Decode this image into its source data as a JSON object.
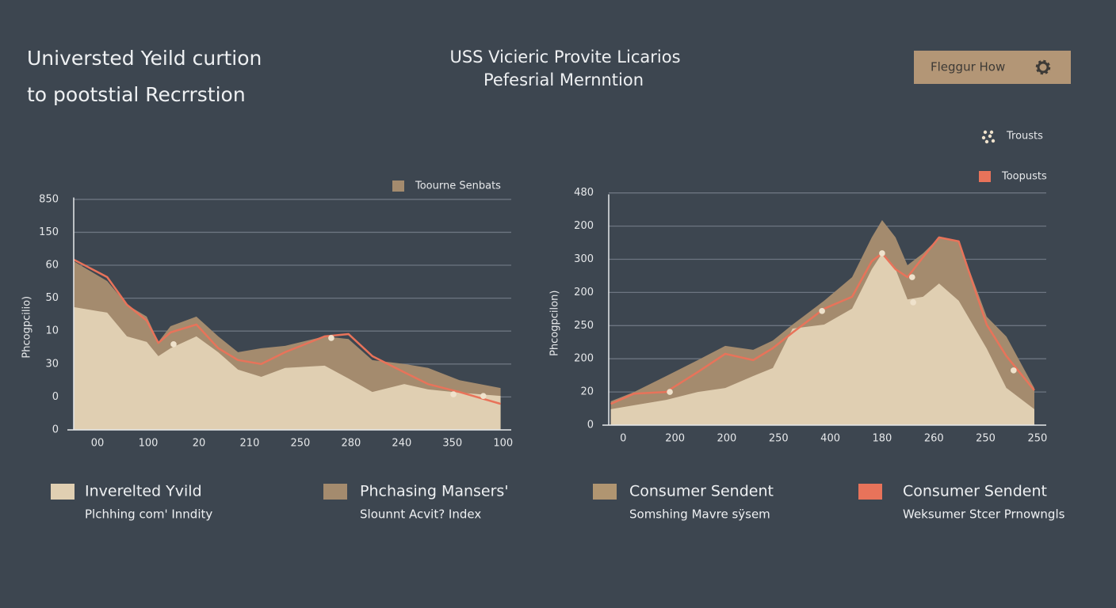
{
  "header": {
    "title_lines": [
      "Universted Yeild curtion",
      "to pootstial Recrrstion"
    ],
    "center_lines": [
      "USS Vicieric Provite Licarios",
      "Pefesrial Mernntion"
    ],
    "button": "Fleggur How"
  },
  "chart_data": [
    {
      "type": "area",
      "y_label": "Phcogpcilio)",
      "legend_corner": "upper right",
      "xlim": [
        -0.47,
        8.16
      ],
      "ylim": [
        0,
        7.2
      ],
      "xticks": [
        {
          "value": 0,
          "label": "00"
        },
        {
          "value": 1,
          "label": "100"
        },
        {
          "value": 2,
          "label": "20"
        },
        {
          "value": 3,
          "label": "210"
        },
        {
          "value": 4,
          "label": "250"
        },
        {
          "value": 5,
          "label": "280"
        },
        {
          "value": 6,
          "label": "240"
        },
        {
          "value": 7,
          "label": "350"
        },
        {
          "value": 8,
          "label": "100"
        }
      ],
      "yticks": [
        0,
        {
          "value": 1,
          "label": "0"
        },
        {
          "value": 2,
          "label": "30"
        },
        {
          "value": 3,
          "label": "10"
        },
        {
          "value": 4,
          "label": "50"
        },
        {
          "value": 5,
          "label": "60"
        },
        {
          "value": 6,
          "label": "150"
        },
        {
          "value": 7,
          "label": "850"
        }
      ],
      "grid": true,
      "x": [
        -0.47,
        0.19,
        0.58,
        0.97,
        1.2,
        1.44,
        1.95,
        2.38,
        2.77,
        3.23,
        3.7,
        4.48,
        4.95,
        5.42,
        6.05,
        6.52,
        7.14,
        7.95
      ],
      "series": [
        {
          "name": "Toourne Senbats",
          "kind": "fill",
          "color": "#a48b6e",
          "values": [
            5.12,
            4.52,
            3.8,
            3.44,
            2.67,
            3.15,
            3.44,
            2.84,
            2.36,
            2.48,
            2.55,
            2.84,
            2.76,
            2.12,
            2.0,
            1.88,
            1.51,
            1.27
          ]
        },
        {
          "kind": "fill",
          "color": "#e0cfb2",
          "values": [
            3.73,
            3.56,
            2.84,
            2.67,
            2.24,
            2.48,
            2.84,
            2.36,
            1.83,
            1.61,
            1.88,
            1.95,
            1.56,
            1.15,
            1.39,
            1.23,
            1.13,
            1.03
          ]
        },
        {
          "kind": "line",
          "color": "#e8735a",
          "values": [
            5.17,
            4.64,
            3.8,
            3.32,
            2.64,
            2.96,
            3.2,
            2.48,
            2.12,
            2.0,
            2.36,
            2.84,
            2.91,
            2.24,
            1.75,
            1.39,
            1.15,
            0.79
          ]
        },
        {
          "kind": "points",
          "color": "#efe2cc",
          "x": [
            1.5,
            4.61,
            7.02,
            7.61
          ],
          "values": [
            2.6,
            2.79,
            1.08,
            1.03
          ]
        }
      ]
    },
    {
      "type": "area",
      "y_label": "Phcogpcilon)",
      "legend_corner": "upper right",
      "xlim": [
        -0.28,
        8.17
      ],
      "ylim": [
        0,
        7.1
      ],
      "xticks": [
        0,
        {
          "value": 1,
          "label": "200"
        },
        {
          "value": 2,
          "label": "200"
        },
        {
          "value": 3,
          "label": "250"
        },
        {
          "value": 4,
          "label": "400"
        },
        {
          "value": 5,
          "label": "180"
        },
        {
          "value": 6,
          "label": "260"
        },
        {
          "value": 7,
          "label": "250"
        },
        {
          "value": 8,
          "label": "250"
        }
      ],
      "yticks": [
        0,
        {
          "value": 1,
          "label": "20"
        },
        {
          "value": 2,
          "label": "200"
        },
        {
          "value": 3,
          "label": "250"
        },
        {
          "value": 4,
          "label": "200"
        },
        {
          "value": 5,
          "label": "300"
        },
        {
          "value": 6,
          "label": "200"
        },
        {
          "value": 7,
          "label": "480"
        }
      ],
      "grid": true,
      "x": [
        -0.24,
        0.21,
        0.83,
        1.44,
        1.97,
        2.51,
        2.89,
        3.27,
        3.88,
        4.42,
        4.8,
        5.0,
        5.26,
        5.49,
        5.79,
        6.1,
        6.48,
        7.02,
        7.4,
        7.94
      ],
      "series": [
        {
          "kind": "fill",
          "color": "#a48b6e",
          "values": [
            0.72,
            1.0,
            1.48,
            1.96,
            2.39,
            2.27,
            2.55,
            3.03,
            3.75,
            4.46,
            5.66,
            6.18,
            5.66,
            4.82,
            5.18,
            5.66,
            5.54,
            3.27,
            2.67,
            1.12
          ]
        },
        {
          "kind": "fill",
          "color": "#e0cfb2",
          "values": [
            0.48,
            0.6,
            0.76,
            1.0,
            1.12,
            1.48,
            1.72,
            2.91,
            3.03,
            3.51,
            4.7,
            5.18,
            4.7,
            3.79,
            3.87,
            4.27,
            3.75,
            2.31,
            1.12,
            0.48
          ]
        },
        {
          "name": "Toopusts",
          "kind": "line",
          "color": "#e8735a",
          "values": [
            0.64,
            0.95,
            1.0,
            1.6,
            2.15,
            1.96,
            2.32,
            2.79,
            3.51,
            3.87,
            4.94,
            5.18,
            4.7,
            4.46,
            5.06,
            5.66,
            5.54,
            3.03,
            2.08,
            1.05
          ]
        },
        {
          "name": "Trousts",
          "kind": "points",
          "color": "#efe2cc",
          "x": [
            0.9,
            3.84,
            5.0,
            5.58,
            5.6,
            7.54
          ],
          "values": [
            1.0,
            3.44,
            5.18,
            4.46,
            3.7,
            1.65
          ]
        }
      ]
    }
  ],
  "legend": [
    {
      "name": "Inverelted Yvild",
      "sub": "Plchhing com' Inndity",
      "color": "#e0cfb2"
    },
    {
      "name": "Phchasing Mansers'",
      "sub": "Slounnt Acvit? Index",
      "color": "#a48b6e"
    },
    {
      "name": "Consumer Sendent",
      "sub": "Somshing Mavre sÿsem",
      "color": "#b09571"
    },
    {
      "name": "Consumer Sendent",
      "sub": "Weksumer Stcer Prnowngls",
      "color": "#e8735a"
    }
  ]
}
